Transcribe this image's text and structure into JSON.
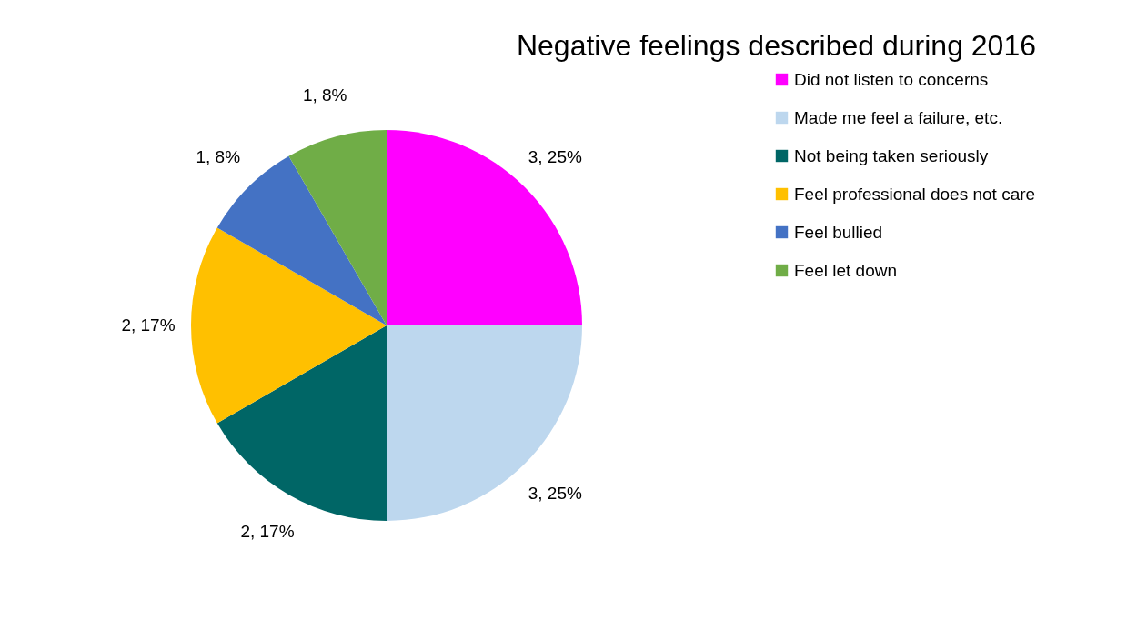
{
  "chart_data": {
    "type": "pie",
    "title": "Negative feelings described during 2016",
    "categories": [
      "Did not listen to concerns",
      "Made me feel a failure, etc.",
      "Not being taken seriously",
      "Feel professional does not care",
      "Feel bullied",
      "Feel let down"
    ],
    "values": [
      3,
      3,
      2,
      2,
      1,
      1
    ],
    "value_labels": [
      "3, 25%",
      "3, 25%",
      "2, 17%",
      "2, 17%",
      "1, 8%",
      "1, 8%"
    ],
    "colors": [
      "#ff00ff",
      "#bdd7ee",
      "#006666",
      "#ffc000",
      "#4472c4",
      "#70ad47"
    ],
    "legend": "right"
  }
}
